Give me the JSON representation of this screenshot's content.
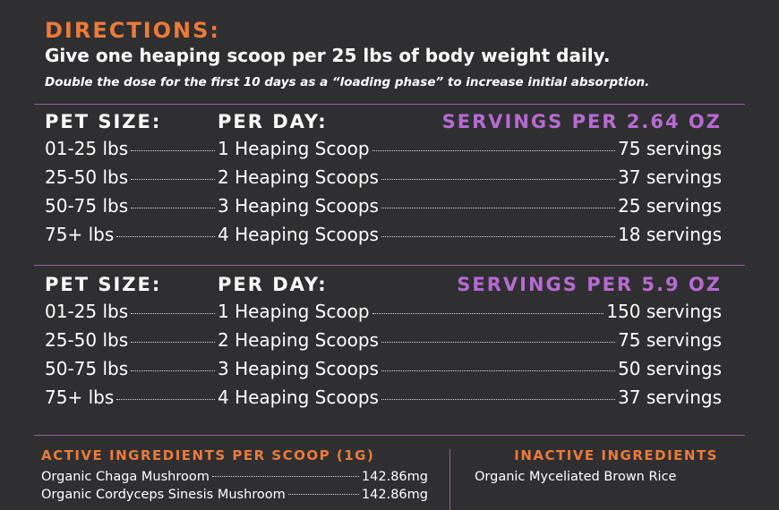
{
  "directions": {
    "heading": "DIRECTIONS:",
    "main": "Give one heaping scoop per 25 lbs of body weight daily.",
    "note": "Double the dose for the first 10 days as a “loading phase” to increase initial absorption."
  },
  "tables": [
    {
      "header": {
        "pet_size": "PET SIZE:",
        "per_day": "PER DAY:",
        "servings": "SERVINGS PER 2.64 OZ"
      },
      "rows": [
        {
          "size": "01-25 lbs",
          "dose": "1 Heaping Scoop",
          "servings": "75 servings"
        },
        {
          "size": "25-50 lbs",
          "dose": "2 Heaping Scoops",
          "servings": "37 servings"
        },
        {
          "size": "50-75 lbs",
          "dose": "3 Heaping Scoops",
          "servings": "25 servings"
        },
        {
          "size": "75+ lbs",
          "dose": "4 Heaping Scoops",
          "servings": "18 servings"
        }
      ]
    },
    {
      "header": {
        "pet_size": "PET SIZE:",
        "per_day": "PER DAY:",
        "servings": "SERVINGS PER 5.9 OZ"
      },
      "rows": [
        {
          "size": "01-25 lbs",
          "dose": "1 Heaping Scoop",
          "servings": "150 servings"
        },
        {
          "size": "25-50 lbs",
          "dose": "2 Heaping Scoops",
          "servings": "75 servings"
        },
        {
          "size": "50-75 lbs",
          "dose": "3 Heaping Scoops",
          "servings": "50 servings"
        },
        {
          "size": "75+ lbs",
          "dose": "4 Heaping Scoops",
          "servings": "37 servings"
        }
      ]
    }
  ],
  "active_ingredients": {
    "heading": "ACTIVE INGREDIENTS PER SCOOP (1G)",
    "items": [
      {
        "name": "Organic Chaga Mushroom",
        "amount": "142.86mg"
      },
      {
        "name": "Organic Cordyceps Sinesis Mushroom",
        "amount": "142.86mg"
      }
    ]
  },
  "inactive_ingredients": {
    "heading": "INACTIVE INGREDIENTS",
    "items": [
      "Organic Myceliated Brown Rice"
    ]
  },
  "colors": {
    "background": "#2f2f31",
    "orange_heading": "#ec7a3a",
    "purple_accent": "#b76ad2",
    "rule": "#9b5aa8",
    "text": "#ffffff"
  }
}
